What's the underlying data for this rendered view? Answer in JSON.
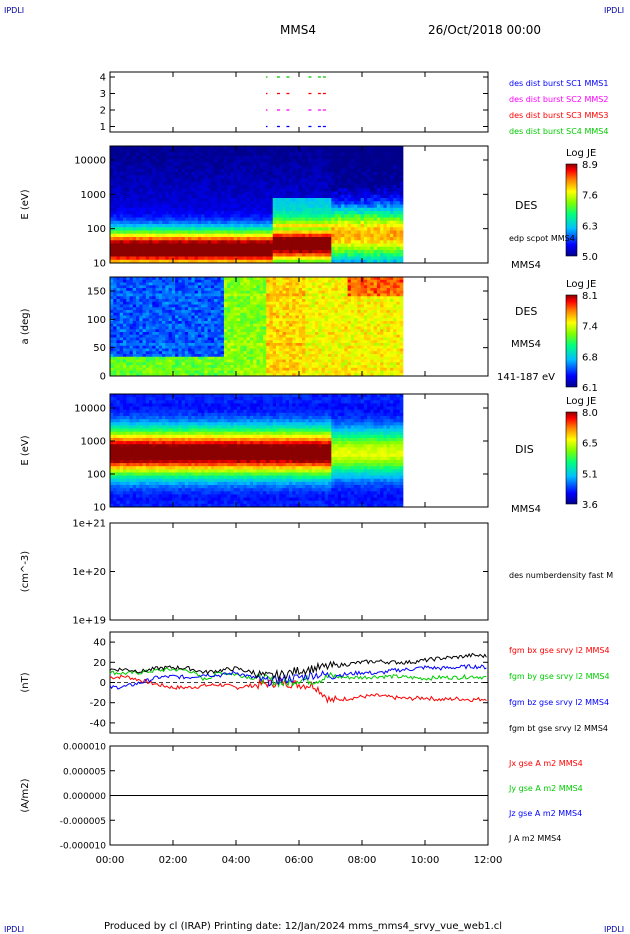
{
  "corner_labels": {
    "top_left": "IPDLI",
    "top_right": "IPDLI",
    "bottom_left": "IPDLI",
    "bottom_right": "IPDLI"
  },
  "header": {
    "spacecraft": "MMS4",
    "date": "26/Oct/2018 00:00"
  },
  "footer": "Produced by cl (IRAP)   Printing date: 12/Jan/2024   mms_mms4_srvy_vue_web1.cl",
  "time_axis": {
    "ticks": [
      "00:00",
      "02:00",
      "04:00",
      "06:00",
      "08:00",
      "10:00",
      "12:00"
    ]
  },
  "colors": {
    "blue": "#0000ff",
    "magenta": "#ff00ff",
    "red": "#ff0000",
    "green": "#00cc00",
    "black": "#000000"
  },
  "chart_data": [
    {
      "type": "line",
      "title": "des dist burst availability",
      "ylim": [
        0.5,
        4.5
      ],
      "yticks": [
        "4",
        "3",
        "2",
        "1"
      ],
      "series": [
        {
          "name": "des dist burst SC1 MMS1",
          "color": "#0000ff",
          "y": 1
        },
        {
          "name": "des dist burst SC2 MMS2",
          "color": "#ff00ff",
          "y": 2
        },
        {
          "name": "des dist burst SC3 MMS3",
          "color": "#ff0000",
          "y": 3
        },
        {
          "name": "des dist burst SC4 MMS4",
          "color": "#00cc00",
          "y": 4
        }
      ],
      "segments_hours": [
        [
          4.95,
          5.0
        ],
        [
          5.3,
          5.4
        ],
        [
          5.6,
          5.7
        ],
        [
          6.3,
          6.45
        ],
        [
          6.6,
          6.9
        ]
      ]
    },
    {
      "type": "heatmap",
      "instrument": "DES",
      "ylabel": "E (eV)",
      "yticks": [
        "10000",
        "1000",
        "100",
        "10"
      ],
      "ylim": [
        10,
        25000
      ],
      "colorbar": {
        "title": "Log JE",
        "ticks": [
          "8.9",
          "7.6",
          "6.3",
          "5.0"
        ]
      },
      "overlay": "edp scpot MMS4",
      "side_label": "MMS4",
      "data_end_hour": 9.3
    },
    {
      "type": "heatmap",
      "instrument": "DES",
      "ylabel": "a (deg)",
      "yticks": [
        "150",
        "100",
        "50",
        "0"
      ],
      "ylim": [
        0,
        180
      ],
      "colorbar": {
        "title": "Log JE",
        "ticks": [
          "8.1",
          "7.4",
          "6.8",
          "6.1"
        ]
      },
      "side_label": "MMS4",
      "energy_label": "141-187 eV",
      "data_end_hour": 9.3
    },
    {
      "type": "heatmap",
      "instrument": "DIS",
      "ylabel": "E (eV)",
      "yticks": [
        "10000",
        "1000",
        "100",
        "10"
      ],
      "ylim": [
        10,
        25000
      ],
      "colorbar": {
        "title": "Log JE",
        "ticks": [
          "8.0",
          "6.5",
          "5.1",
          "3.6"
        ]
      },
      "side_label": "MMS4",
      "data_end_hour": 9.3
    },
    {
      "type": "line",
      "ylabel": "(cm^-3)",
      "yticks": [
        "1e+21",
        "1e+20",
        "1e+19"
      ],
      "series": [
        {
          "name": "des numberdensity fast M",
          "values": []
        }
      ]
    },
    {
      "type": "line",
      "ylabel": "(nT)",
      "ylim": [
        -50,
        50
      ],
      "yticks": [
        "40",
        "20",
        "0",
        "-20",
        "-40"
      ],
      "x_hours": [
        0,
        0.5,
        1,
        1.5,
        2,
        2.5,
        3,
        3.5,
        4,
        4.5,
        5,
        5.5,
        6,
        6.5,
        7,
        7.5,
        8,
        8.5,
        9,
        9.5,
        10,
        10.5,
        11,
        11.5,
        12
      ],
      "series": [
        {
          "name": "fgm bx gse srvy l2 MMS4",
          "color": "#ff0000",
          "values": [
            5,
            6,
            2,
            -2,
            -5,
            -5,
            -3,
            -2,
            -5,
            -3,
            -1,
            0,
            -2,
            -3,
            -18,
            -16,
            -14,
            -13,
            -15,
            -16,
            -15,
            -17,
            -16,
            -17,
            -16
          ]
        },
        {
          "name": "fgm by gse srvy l2 MMS4",
          "color": "#00cc00",
          "values": [
            10,
            9,
            10,
            12,
            13,
            12,
            3,
            10,
            8,
            5,
            3,
            -1,
            3,
            2,
            6,
            5,
            5,
            6,
            6,
            5,
            4,
            5,
            5,
            6,
            5
          ]
        },
        {
          "name": "fgm bz gse srvy l2 MMS4",
          "color": "#0000ff",
          "values": [
            -5,
            -4,
            0,
            5,
            6,
            5,
            8,
            7,
            10,
            5,
            1,
            3,
            5,
            8,
            7,
            8,
            10,
            9,
            12,
            13,
            15,
            14,
            15,
            16,
            15
          ]
        },
        {
          "name": "fgm bt gse srvy l2 MMS4",
          "color": "#000000",
          "values": [
            13,
            13,
            11,
            14,
            15,
            14,
            10,
            12,
            14,
            10,
            6,
            8,
            12,
            14,
            16,
            18,
            20,
            21,
            20,
            20,
            22,
            24,
            25,
            27,
            26
          ]
        }
      ]
    },
    {
      "type": "line",
      "ylabel": "(A/m2)",
      "ylim": [
        -1e-05,
        1e-05
      ],
      "yticks": [
        "0.000010",
        "0.000005",
        "0.000000",
        "-0.000005",
        "-0.000010"
      ],
      "series": [
        {
          "name": "Jx gse A m2 MMS4",
          "color": "#ff0000",
          "values": [
            0,
            0,
            0,
            0,
            0,
            0,
            0,
            0,
            0,
            0,
            0,
            0,
            0,
            0,
            0,
            0,
            0,
            0,
            0,
            0,
            0,
            0,
            0,
            0,
            0
          ]
        },
        {
          "name": "Jy gse A m2 MMS4",
          "color": "#00cc00",
          "values": [
            0,
            0,
            0,
            0,
            0,
            0,
            0,
            0,
            0,
            0,
            0,
            0,
            0,
            0,
            0,
            0,
            0,
            0,
            0,
            0,
            0,
            0,
            0,
            0,
            0
          ]
        },
        {
          "name": "Jz gse A m2 MMS4",
          "color": "#0000ff",
          "values": [
            0,
            0,
            0,
            0,
            0,
            0,
            0,
            0,
            0,
            0,
            0,
            0,
            0,
            0,
            0,
            0,
            0,
            0,
            0,
            0,
            0,
            0,
            0,
            0,
            0
          ]
        },
        {
          "name": "J A m2 MMS4",
          "color": "#000000",
          "values": [
            0,
            0,
            0,
            0,
            0,
            0,
            0,
            0,
            0,
            0,
            0,
            0,
            0,
            0,
            0,
            0,
            0,
            0,
            0,
            0,
            0,
            0,
            0,
            0,
            0
          ]
        }
      ]
    }
  ]
}
